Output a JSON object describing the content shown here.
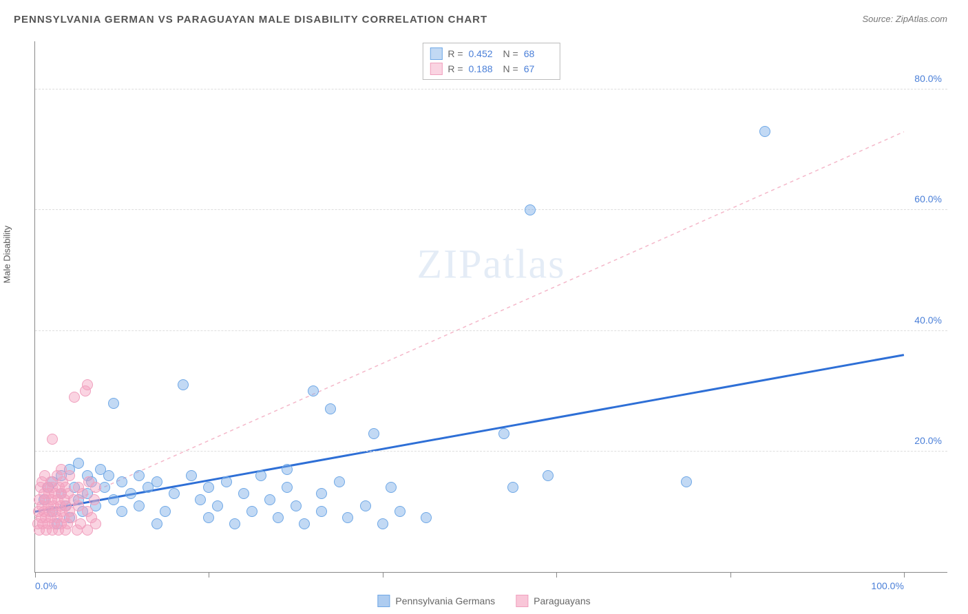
{
  "header": {
    "title": "PENNSYLVANIA GERMAN VS PARAGUAYAN MALE DISABILITY CORRELATION CHART",
    "source": "Source: ZipAtlas.com"
  },
  "watermark": {
    "zip": "ZIP",
    "atlas": "atlas"
  },
  "chart": {
    "type": "scatter",
    "ylabel": "Male Disability",
    "xlim": [
      0,
      105
    ],
    "ylim": [
      0,
      88
    ],
    "yticks": [
      20,
      40,
      60,
      80
    ],
    "ytick_labels": [
      "20.0%",
      "40.0%",
      "60.0%",
      "80.0%"
    ],
    "xticks": [
      0,
      20,
      40,
      60,
      80,
      100
    ],
    "xtick_labels_shown": {
      "0": "0.0%",
      "100": "100.0%"
    },
    "grid_color": "#dddddd",
    "axis_color": "#888888",
    "background_color": "#ffffff",
    "series": [
      {
        "name": "Pennsylvania Germans",
        "color_fill": "rgba(120,170,230,0.45)",
        "color_stroke": "#6fa8e6",
        "marker_radius": 8,
        "R": "0.452",
        "N": "68",
        "trendline": {
          "y_at_x0": 10,
          "y_at_x100": 36,
          "stroke": "#2e6fd6",
          "width": 3,
          "dash": "none"
        },
        "points": [
          [
            1,
            12
          ],
          [
            1.5,
            14
          ],
          [
            2,
            10
          ],
          [
            2,
            15
          ],
          [
            2.5,
            8
          ],
          [
            3,
            13
          ],
          [
            3,
            16
          ],
          [
            3.5,
            11
          ],
          [
            4,
            17
          ],
          [
            4,
            9
          ],
          [
            4.5,
            14
          ],
          [
            5,
            12
          ],
          [
            5,
            18
          ],
          [
            5.5,
            10
          ],
          [
            6,
            16
          ],
          [
            6,
            13
          ],
          [
            6.5,
            15
          ],
          [
            7,
            11
          ],
          [
            7.5,
            17
          ],
          [
            8,
            14
          ],
          [
            8.5,
            16
          ],
          [
            9,
            12
          ],
          [
            9,
            28
          ],
          [
            10,
            15
          ],
          [
            10,
            10
          ],
          [
            11,
            13
          ],
          [
            12,
            16
          ],
          [
            12,
            11
          ],
          [
            13,
            14
          ],
          [
            14,
            8
          ],
          [
            14,
            15
          ],
          [
            15,
            10
          ],
          [
            16,
            13
          ],
          [
            17,
            31
          ],
          [
            18,
            16
          ],
          [
            19,
            12
          ],
          [
            20,
            9
          ],
          [
            20,
            14
          ],
          [
            21,
            11
          ],
          [
            22,
            15
          ],
          [
            23,
            8
          ],
          [
            24,
            13
          ],
          [
            25,
            10
          ],
          [
            26,
            16
          ],
          [
            27,
            12
          ],
          [
            28,
            9
          ],
          [
            29,
            17
          ],
          [
            29,
            14
          ],
          [
            30,
            11
          ],
          [
            31,
            8
          ],
          [
            32,
            30
          ],
          [
            33,
            13
          ],
          [
            33,
            10
          ],
          [
            34,
            27
          ],
          [
            35,
            15
          ],
          [
            36,
            9
          ],
          [
            38,
            11
          ],
          [
            39,
            23
          ],
          [
            40,
            8
          ],
          [
            41,
            14
          ],
          [
            42,
            10
          ],
          [
            45,
            9
          ],
          [
            54,
            23
          ],
          [
            55,
            14
          ],
          [
            57,
            60
          ],
          [
            59,
            16
          ],
          [
            75,
            15
          ],
          [
            84,
            73
          ]
        ]
      },
      {
        "name": "Paraguayans",
        "color_fill": "rgba(245,160,190,0.45)",
        "color_stroke": "#f0a0be",
        "marker_radius": 8,
        "R": "0.188",
        "N": "67",
        "trendline": {
          "y_at_x0": 9,
          "y_at_x100": 73,
          "stroke": "#f4b7c9",
          "width": 1.5,
          "dash": "5,5"
        },
        "points": [
          [
            0.3,
            8
          ],
          [
            0.4,
            10
          ],
          [
            0.5,
            12
          ],
          [
            0.5,
            7
          ],
          [
            0.6,
            14
          ],
          [
            0.7,
            9
          ],
          [
            0.8,
            11
          ],
          [
            0.8,
            15
          ],
          [
            0.9,
            8
          ],
          [
            1.0,
            13
          ],
          [
            1.0,
            10
          ],
          [
            1.1,
            16
          ],
          [
            1.2,
            9
          ],
          [
            1.2,
            12
          ],
          [
            1.3,
            7
          ],
          [
            1.4,
            14
          ],
          [
            1.5,
            11
          ],
          [
            1.5,
            8
          ],
          [
            1.6,
            13
          ],
          [
            1.7,
            10
          ],
          [
            1.8,
            15
          ],
          [
            1.8,
            9
          ],
          [
            1.9,
            12
          ],
          [
            2.0,
            7
          ],
          [
            2.0,
            14
          ],
          [
            2.1,
            11
          ],
          [
            2.2,
            8
          ],
          [
            2.3,
            13
          ],
          [
            2.4,
            10
          ],
          [
            2.5,
            16
          ],
          [
            2.5,
            9
          ],
          [
            2.6,
            12
          ],
          [
            2.7,
            7
          ],
          [
            2.8,
            14
          ],
          [
            2.9,
            11
          ],
          [
            3.0,
            8
          ],
          [
            3.0,
            13
          ],
          [
            3.1,
            10
          ],
          [
            3.2,
            15
          ],
          [
            3.3,
            9
          ],
          [
            3.4,
            12
          ],
          [
            3.5,
            7
          ],
          [
            3.5,
            14
          ],
          [
            3.6,
            11
          ],
          [
            3.7,
            8
          ],
          [
            3.8,
            13
          ],
          [
            4.0,
            10
          ],
          [
            4.0,
            16
          ],
          [
            4.2,
            9
          ],
          [
            4.4,
            12
          ],
          [
            4.5,
            29
          ],
          [
            4.8,
            7
          ],
          [
            5.0,
            14
          ],
          [
            5.0,
            11
          ],
          [
            5.2,
            8
          ],
          [
            5.5,
            13
          ],
          [
            5.8,
            30
          ],
          [
            6.0,
            10
          ],
          [
            6.0,
            7
          ],
          [
            6.0,
            31
          ],
          [
            6.2,
            15
          ],
          [
            6.5,
            9
          ],
          [
            6.8,
            12
          ],
          [
            7.0,
            8
          ],
          [
            7.0,
            14
          ],
          [
            2.0,
            22
          ],
          [
            3.0,
            17
          ]
        ]
      }
    ]
  },
  "legend": {
    "items": [
      {
        "label": "Pennsylvania Germans",
        "color": "rgba(120,170,230,0.6)",
        "border": "#6fa8e6"
      },
      {
        "label": "Paraguayans",
        "color": "rgba(245,160,190,0.6)",
        "border": "#f0a0be"
      }
    ]
  },
  "colors": {
    "title_text": "#555555",
    "source_text": "#777777",
    "tick_text": "#4a7fd8"
  }
}
